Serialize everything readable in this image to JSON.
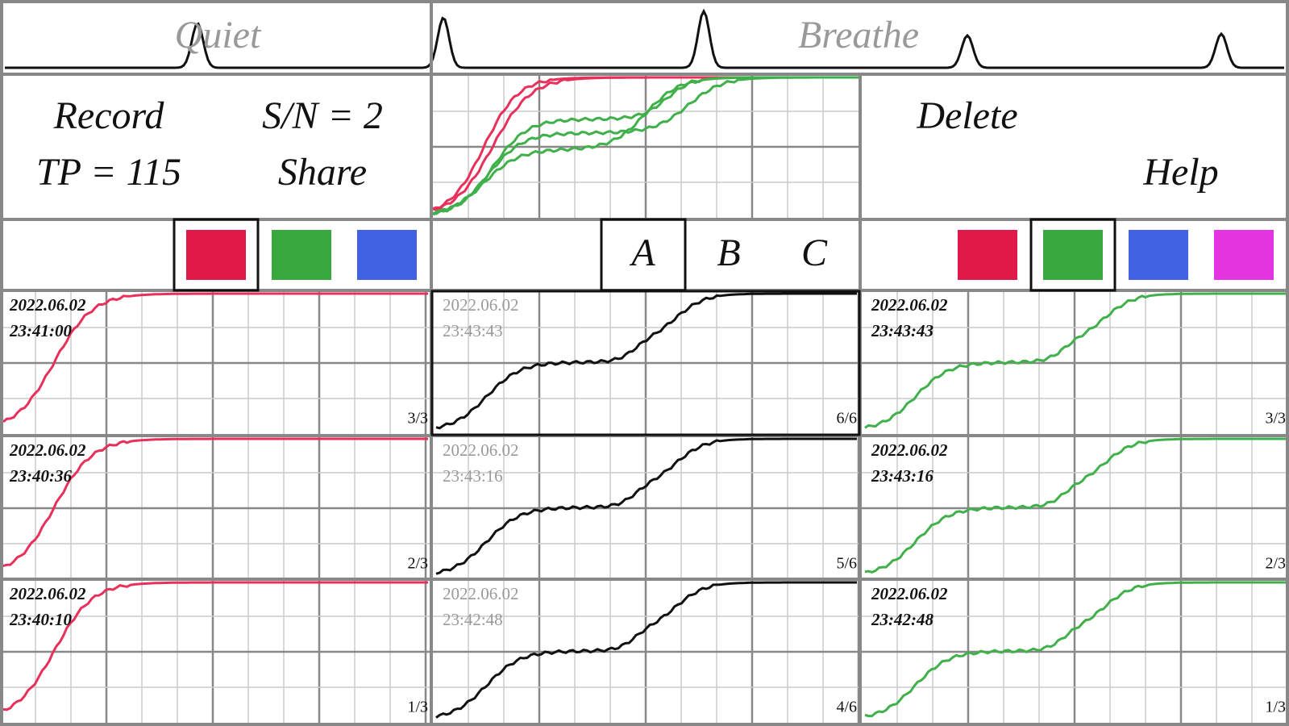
{
  "top_bar": {
    "left_label": "Quiet",
    "right_label": "Breathe"
  },
  "controls": {
    "record": "Record",
    "tp": "TP = 115",
    "sn": "S/N = 2",
    "share": "Share",
    "delete": "Delete",
    "help": "Help"
  },
  "left_swatches": [
    {
      "color": "#e0194a",
      "selected": true
    },
    {
      "color": "#39a83f",
      "selected": false
    },
    {
      "color": "#4163e3",
      "selected": false
    }
  ],
  "tabs": [
    {
      "label": "A",
      "selected": true
    },
    {
      "label": "B",
      "selected": false
    },
    {
      "label": "C",
      "selected": false
    }
  ],
  "right_swatches": [
    {
      "color": "#e0194a",
      "selected": false
    },
    {
      "color": "#39a83f",
      "selected": true
    },
    {
      "color": "#4163e3",
      "selected": false
    },
    {
      "color": "#e433e0",
      "selected": false
    }
  ],
  "columns": [
    {
      "color": "#e8305a",
      "text_color": "#111111",
      "panels": [
        {
          "date": "2022.06.02",
          "time": "23:41:00",
          "count": "3/3",
          "selected": false
        },
        {
          "date": "2022.06.02",
          "time": "23:40:36",
          "count": "2/3",
          "selected": false
        },
        {
          "date": "2022.06.02",
          "time": "23:40:10",
          "count": "1/3",
          "selected": false
        }
      ]
    },
    {
      "color": "#111111",
      "text_color": "#9a9a9a",
      "panels": [
        {
          "date": "2022.06.02",
          "time": "23:43:43",
          "count": "6/6",
          "selected": true
        },
        {
          "date": "2022.06.02",
          "time": "23:43:16",
          "count": "5/6",
          "selected": false
        },
        {
          "date": "2022.06.02",
          "time": "23:42:48",
          "count": "4/6",
          "selected": false
        }
      ]
    },
    {
      "color": "#3fb04a",
      "text_color": "#111111",
      "panels": [
        {
          "date": "2022.06.02",
          "time": "23:43:43",
          "count": "3/3",
          "selected": false
        },
        {
          "date": "2022.06.02",
          "time": "23:43:16",
          "count": "2/3",
          "selected": false
        },
        {
          "date": "2022.06.02",
          "time": "23:42:48",
          "count": "1/3",
          "selected": false
        }
      ]
    }
  ]
}
